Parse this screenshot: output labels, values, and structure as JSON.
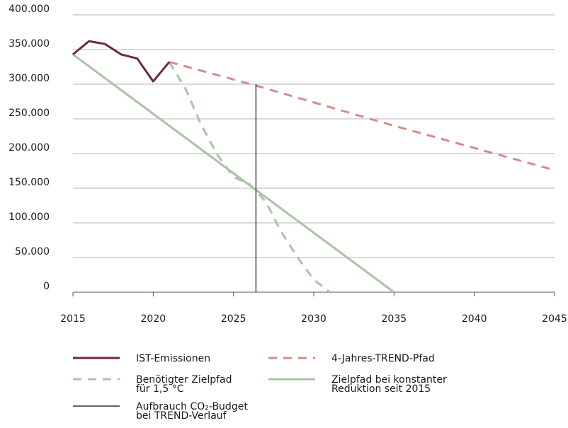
{
  "chart_data": {
    "type": "line",
    "x_ticks": [
      "2015",
      "2020",
      "2025",
      "2030",
      "2035",
      "2040",
      "2045"
    ],
    "y_ticks": [
      "0",
      "50.000",
      "100.000",
      "150.000",
      "200.000",
      "250.000",
      "300.000",
      "350.000",
      "400.000"
    ],
    "xlim": [
      2015,
      2045
    ],
    "ylim": [
      0,
      400000
    ],
    "grid": "horizontal",
    "legend_position": "bottom",
    "series": [
      {
        "name": "IST-Emissionen",
        "style": "solid",
        "color": "#6b2a3c",
        "points": [
          [
            2015,
            343000
          ],
          [
            2016,
            362000
          ],
          [
            2017,
            358000
          ],
          [
            2018,
            343000
          ],
          [
            2019,
            337000
          ],
          [
            2020,
            304000
          ],
          [
            2021,
            332000
          ]
        ]
      },
      {
        "name": "4-Jahres-TREND-Pfad",
        "style": "dashed",
        "color": "#d98a86",
        "points": [
          [
            2021,
            332000
          ],
          [
            2026.4,
            298000
          ],
          [
            2035,
            240000
          ],
          [
            2045,
            176000
          ]
        ]
      },
      {
        "name": "Benötigter Zielpfad\nfür 1,5 °C",
        "style": "dashed",
        "color": "#a8c4a4",
        "points": [
          [
            2021,
            332000
          ],
          [
            2022,
            294000
          ],
          [
            2023,
            241000
          ],
          [
            2024,
            198000
          ],
          [
            2025,
            166000
          ],
          [
            2026,
            156000
          ],
          [
            2027,
            131000
          ],
          [
            2028,
            86000
          ],
          [
            2029,
            50000
          ],
          [
            2030,
            18000
          ],
          [
            2031,
            0
          ]
        ]
      },
      {
        "name": "Zielpfad bei konstanter\nReduktion seit 2015",
        "style": "solid",
        "color": "#a8c4a4",
        "points": [
          [
            2015,
            343000
          ],
          [
            2035,
            0
          ]
        ]
      },
      {
        "name": "Aufbrauch CO₂-Budget\nbei TREND-Verlauf",
        "style": "solid",
        "color": "#333333",
        "points": [
          [
            2026.4,
            0
          ],
          [
            2026.4,
            300000
          ]
        ]
      }
    ]
  }
}
